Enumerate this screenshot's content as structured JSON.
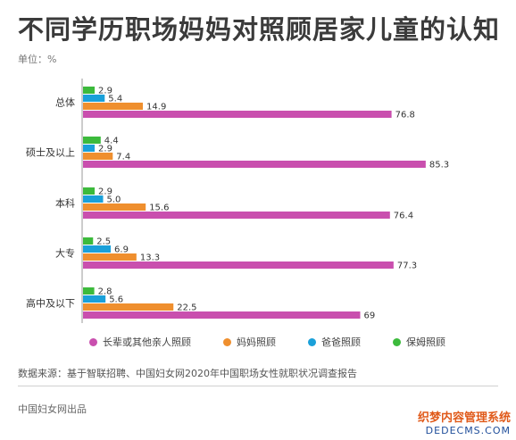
{
  "header": {
    "title": "不同学历职场妈妈对照顾居家儿童的认知",
    "unit": "单位：%"
  },
  "chart_data": {
    "type": "bar",
    "orientation": "horizontal",
    "categories": [
      "总体",
      "硕士及以上",
      "本科",
      "大专",
      "高中及以下"
    ],
    "series": [
      {
        "name": "保姆照顾",
        "color": "#3cba3c",
        "values": [
          "2.9",
          "4.4",
          "2.9",
          "2.5",
          "2.8"
        ]
      },
      {
        "name": "爸爸照顾",
        "color": "#1aa0d9",
        "values": [
          "5.4",
          "2.9",
          "5.0",
          "6.9",
          "5.6"
        ]
      },
      {
        "name": "妈妈照顾",
        "color": "#ef8f2e",
        "values": [
          "14.9",
          "7.4",
          "15.6",
          "13.3",
          "22.5"
        ]
      },
      {
        "name": "长辈或其他亲人照顾",
        "color": "#c94fae",
        "values": [
          "76.8",
          "85.3",
          "76.4",
          "77.3",
          "69"
        ]
      }
    ],
    "xlim": [
      0,
      100
    ],
    "grid": false,
    "legend": "bottom"
  },
  "legend_order": [
    "长辈或其他亲人照顾",
    "妈妈照顾",
    "爸爸照顾",
    "保姆照顾"
  ],
  "footer": {
    "source": "数据来源：基于智联招聘、中国妇女网2020年中国职场女性就职状况调查报告",
    "publisher": "中国妇女网出品"
  },
  "watermark": {
    "line1": "织梦内容管理系统",
    "line2": "DEDECMS.COM"
  }
}
